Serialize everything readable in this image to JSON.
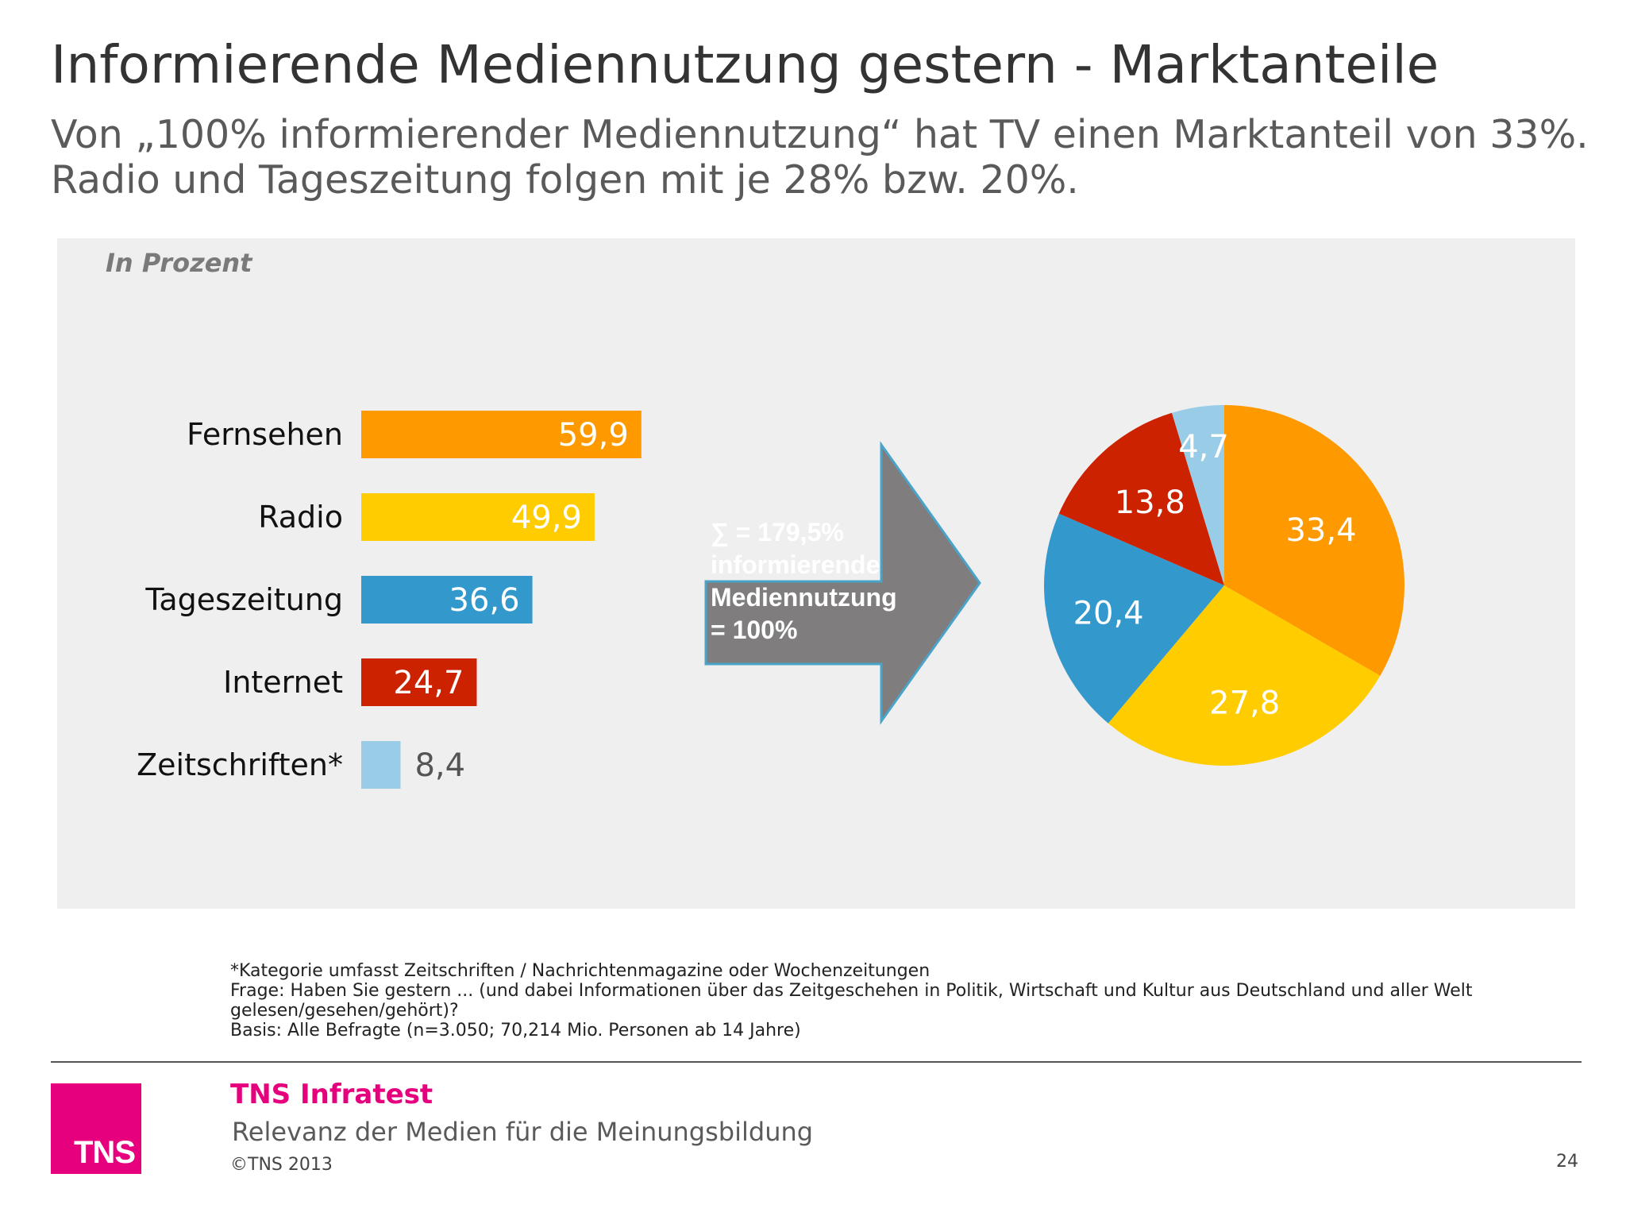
{
  "title": "Informierende Mediennutzung gestern - Marktanteile",
  "subtitle": "Von „100% informierender Mediennutzung“ hat TV einen Marktanteil von 33%. Radio und Tageszeitung folgen mit je 28% bzw. 20%.",
  "unit_label": "In Prozent",
  "arrow": {
    "line1": "∑ = 179,5%",
    "line2": "informierende",
    "line3": "Mediennutzung",
    "line4": "= 100%"
  },
  "chart_data": [
    {
      "type": "bar",
      "orientation": "horizontal",
      "categories": [
        "Fernsehen",
        "Radio",
        "Tageszeitung",
        "Internet",
        "Zeitschriften*"
      ],
      "values": [
        59.9,
        49.9,
        36.6,
        24.7,
        8.4
      ],
      "value_labels": [
        "59,9",
        "49,9",
        "36,6",
        "24,7",
        "8,4"
      ],
      "colors": [
        "#ff9900",
        "#ffcc00",
        "#3399cc",
        "#cc2200",
        "#99cce6"
      ]
    },
    {
      "type": "pie",
      "values": [
        33.4,
        27.8,
        20.4,
        13.8,
        4.7
      ],
      "value_labels": [
        "33,4",
        "27,8",
        "20,4",
        "13,8",
        "4,7"
      ],
      "colors": [
        "#ff9900",
        "#ffcc00",
        "#3399cc",
        "#cc2200",
        "#99cce6"
      ]
    }
  ],
  "footnotes": [
    "*Kategorie umfasst Zeitschriften / Nachrichtenmagazine oder Wochenzeitungen",
    "Frage: Haben Sie gestern ... (und dabei Informationen über das Zeitgeschehen in Politik, Wirtschaft und Kultur aus Deutschland und aller Welt gelesen/gesehen/gehört)?",
    "Basis: Alle Befragte (n=3.050; 70,214 Mio. Personen ab 14 Jahre)"
  ],
  "footer": {
    "logo": "TNS",
    "company": "TNS Infratest",
    "report": "Relevanz der Medien für die Meinungsbildung",
    "copyright": "©TNS 2013",
    "page": "24"
  }
}
